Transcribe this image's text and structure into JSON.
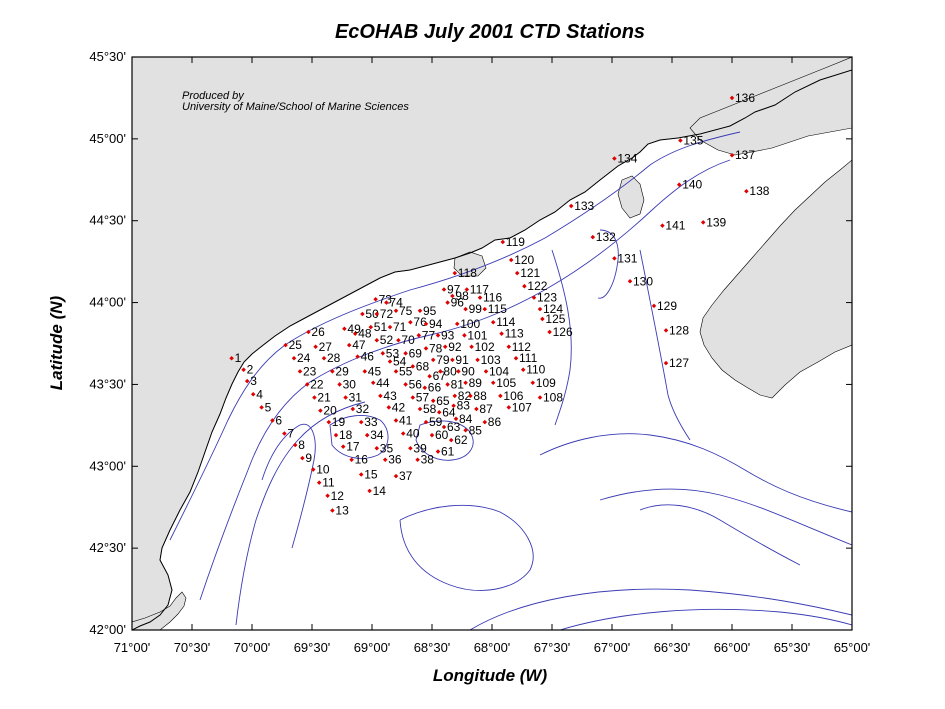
{
  "map": {
    "title": "EcOHAB   July 2001  CTD Stations",
    "xlabel": "Longitude (W)",
    "ylabel": "Latitude (N)",
    "credit": [
      "Produced by",
      "University of Maine/School of Marine Sciences"
    ],
    "lon_range": [
      -71.0,
      -65.0
    ],
    "lat_range": [
      42.0,
      45.5
    ],
    "lon_ticks": [
      {
        "value": -71.0,
        "label": "71°00'"
      },
      {
        "value": -70.5,
        "label": "70°30'"
      },
      {
        "value": -70.0,
        "label": "70°00'"
      },
      {
        "value": -69.5,
        "label": "69°30'"
      },
      {
        "value": -69.0,
        "label": "69°00'"
      },
      {
        "value": -68.5,
        "label": "68°30'"
      },
      {
        "value": -68.0,
        "label": "68°00'"
      },
      {
        "value": -67.5,
        "label": "67°30'"
      },
      {
        "value": -67.0,
        "label": "67°00'"
      },
      {
        "value": -66.5,
        "label": "66°30'"
      },
      {
        "value": -66.0,
        "label": "66°00'"
      },
      {
        "value": -65.5,
        "label": "65°30'"
      },
      {
        "value": -65.0,
        "label": "65°00'"
      }
    ],
    "lat_ticks": [
      {
        "value": 42.0,
        "label": "42°00'"
      },
      {
        "value": 42.5,
        "label": "42°30'"
      },
      {
        "value": 43.0,
        "label": "43°00'"
      },
      {
        "value": 43.5,
        "label": "43°30'"
      },
      {
        "value": 44.0,
        "label": "44°00'"
      },
      {
        "value": 44.5,
        "label": "44°30'"
      },
      {
        "value": 45.0,
        "label": "45°00'"
      },
      {
        "value": 45.5,
        "label": "45°30'"
      }
    ],
    "colors": {
      "land": "#e1e1e1",
      "water": "#ffffff",
      "coastline": "#000000",
      "bathymetry": "#3a3ab4",
      "station": "#e00000"
    }
  },
  "stations": [
    {
      "id": "1",
      "lon": -70.17,
      "lat": 43.66
    },
    {
      "id": "2",
      "lon": -70.07,
      "lat": 43.59
    },
    {
      "id": "3",
      "lon": -70.04,
      "lat": 43.52
    },
    {
      "id": "4",
      "lon": -69.99,
      "lat": 43.44
    },
    {
      "id": "5",
      "lon": -69.92,
      "lat": 43.36
    },
    {
      "id": "6",
      "lon": -69.83,
      "lat": 43.28
    },
    {
      "id": "7",
      "lon": -69.73,
      "lat": 43.2
    },
    {
      "id": "8",
      "lon": -69.64,
      "lat": 43.13
    },
    {
      "id": "9",
      "lon": -69.58,
      "lat": 43.05
    },
    {
      "id": "10",
      "lon": -69.49,
      "lat": 42.98
    },
    {
      "id": "11",
      "lon": -69.44,
      "lat": 42.9
    },
    {
      "id": "12",
      "lon": -69.37,
      "lat": 42.82
    },
    {
      "id": "13",
      "lon": -69.33,
      "lat": 42.73
    },
    {
      "id": "14",
      "lon": -69.02,
      "lat": 42.85
    },
    {
      "id": "15",
      "lon": -69.09,
      "lat": 42.95
    },
    {
      "id": "16",
      "lon": -69.17,
      "lat": 43.04
    },
    {
      "id": "17",
      "lon": -69.24,
      "lat": 43.12
    },
    {
      "id": "18",
      "lon": -69.3,
      "lat": 43.19
    },
    {
      "id": "19",
      "lon": -69.36,
      "lat": 43.27
    },
    {
      "id": "20",
      "lon": -69.43,
      "lat": 43.34
    },
    {
      "id": "21",
      "lon": -69.48,
      "lat": 43.42
    },
    {
      "id": "22",
      "lon": -69.54,
      "lat": 43.5
    },
    {
      "id": "23",
      "lon": -69.6,
      "lat": 43.58
    },
    {
      "id": "24",
      "lon": -69.65,
      "lat": 43.66
    },
    {
      "id": "25",
      "lon": -69.72,
      "lat": 43.74
    },
    {
      "id": "26",
      "lon": -69.53,
      "lat": 43.82
    },
    {
      "id": "27",
      "lon": -69.47,
      "lat": 43.73
    },
    {
      "id": "28",
      "lon": -69.4,
      "lat": 43.66
    },
    {
      "id": "29",
      "lon": -69.33,
      "lat": 43.58
    },
    {
      "id": "30",
      "lon": -69.27,
      "lat": 43.5
    },
    {
      "id": "31",
      "lon": -69.22,
      "lat": 43.42
    },
    {
      "id": "32",
      "lon": -69.16,
      "lat": 43.35
    },
    {
      "id": "33",
      "lon": -69.09,
      "lat": 43.27
    },
    {
      "id": "34",
      "lon": -69.04,
      "lat": 43.19
    },
    {
      "id": "35",
      "lon": -68.96,
      "lat": 43.11
    },
    {
      "id": "36",
      "lon": -68.89,
      "lat": 43.04
    },
    {
      "id": "37",
      "lon": -68.8,
      "lat": 42.94
    },
    {
      "id": "38",
      "lon": -68.62,
      "lat": 43.04
    },
    {
      "id": "39",
      "lon": -68.68,
      "lat": 43.11
    },
    {
      "id": "40",
      "lon": -68.74,
      "lat": 43.2
    },
    {
      "id": "41",
      "lon": -68.8,
      "lat": 43.28
    },
    {
      "id": "42",
      "lon": -68.86,
      "lat": 43.36
    },
    {
      "id": "43",
      "lon": -68.93,
      "lat": 43.43
    },
    {
      "id": "44",
      "lon": -68.99,
      "lat": 43.51
    },
    {
      "id": "45",
      "lon": -69.06,
      "lat": 43.58
    },
    {
      "id": "46",
      "lon": -69.12,
      "lat": 43.67
    },
    {
      "id": "47",
      "lon": -69.19,
      "lat": 43.74
    },
    {
      "id": "48",
      "lon": -69.14,
      "lat": 43.81
    },
    {
      "id": "49",
      "lon": -69.23,
      "lat": 43.84
    },
    {
      "id": "50",
      "lon": -69.08,
      "lat": 43.93
    },
    {
      "id": "51",
      "lon": -69.01,
      "lat": 43.85
    },
    {
      "id": "52",
      "lon": -68.96,
      "lat": 43.77
    },
    {
      "id": "53",
      "lon": -68.91,
      "lat": 43.69
    },
    {
      "id": "54",
      "lon": -68.85,
      "lat": 43.64
    },
    {
      "id": "55",
      "lon": -68.8,
      "lat": 43.58
    },
    {
      "id": "56",
      "lon": -68.72,
      "lat": 43.5
    },
    {
      "id": "57",
      "lon": -68.66,
      "lat": 43.42
    },
    {
      "id": "58",
      "lon": -68.6,
      "lat": 43.35
    },
    {
      "id": "59",
      "lon": -68.55,
      "lat": 43.27
    },
    {
      "id": "60",
      "lon": -68.5,
      "lat": 43.19
    },
    {
      "id": "61",
      "lon": -68.45,
      "lat": 43.09
    },
    {
      "id": "62",
      "lon": -68.34,
      "lat": 43.16
    },
    {
      "id": "63",
      "lon": -68.4,
      "lat": 43.24
    },
    {
      "id": "64",
      "lon": -68.44,
      "lat": 43.33
    },
    {
      "id": "65",
      "lon": -68.49,
      "lat": 43.4
    },
    {
      "id": "66",
      "lon": -68.56,
      "lat": 43.48
    },
    {
      "id": "67",
      "lon": -68.52,
      "lat": 43.55
    },
    {
      "id": "68",
      "lon": -68.66,
      "lat": 43.61
    },
    {
      "id": "69",
      "lon": -68.72,
      "lat": 43.69
    },
    {
      "id": "70",
      "lon": -68.78,
      "lat": 43.77
    },
    {
      "id": "71",
      "lon": -68.85,
      "lat": 43.85
    },
    {
      "id": "72",
      "lon": -68.96,
      "lat": 43.93
    },
    {
      "id": "73",
      "lon": -68.97,
      "lat": 44.02
    },
    {
      "id": "74",
      "lon": -68.88,
      "lat": 44.0
    },
    {
      "id": "75",
      "lon": -68.8,
      "lat": 43.95
    },
    {
      "id": "76",
      "lon": -68.68,
      "lat": 43.88
    },
    {
      "id": "77",
      "lon": -68.61,
      "lat": 43.8
    },
    {
      "id": "78",
      "lon": -68.55,
      "lat": 43.72
    },
    {
      "id": "79",
      "lon": -68.49,
      "lat": 43.65
    },
    {
      "id": "80",
      "lon": -68.43,
      "lat": 43.58
    },
    {
      "id": "81",
      "lon": -68.37,
      "lat": 43.5
    },
    {
      "id": "82",
      "lon": -68.31,
      "lat": 43.43
    },
    {
      "id": "83",
      "lon": -68.32,
      "lat": 43.37
    },
    {
      "id": "84",
      "lon": -68.3,
      "lat": 43.29
    },
    {
      "id": "85",
      "lon": -68.22,
      "lat": 43.22
    },
    {
      "id": "86",
      "lon": -68.06,
      "lat": 43.27
    },
    {
      "id": "87",
      "lon": -68.13,
      "lat": 43.35
    },
    {
      "id": "88",
      "lon": -68.18,
      "lat": 43.43
    },
    {
      "id": "89",
      "lon": -68.22,
      "lat": 43.51
    },
    {
      "id": "90",
      "lon": -68.28,
      "lat": 43.58
    },
    {
      "id": "91",
      "lon": -68.33,
      "lat": 43.65
    },
    {
      "id": "92",
      "lon": -68.39,
      "lat": 43.73
    },
    {
      "id": "93",
      "lon": -68.45,
      "lat": 43.8
    },
    {
      "id": "94",
      "lon": -68.55,
      "lat": 43.87
    },
    {
      "id": "95",
      "lon": -68.6,
      "lat": 43.95
    },
    {
      "id": "96",
      "lon": -68.37,
      "lat": 44.0
    },
    {
      "id": "97",
      "lon": -68.4,
      "lat": 44.08
    },
    {
      "id": "98",
      "lon": -68.33,
      "lat": 44.04
    },
    {
      "id": "99",
      "lon": -68.22,
      "lat": 43.96
    },
    {
      "id": "100",
      "lon": -68.29,
      "lat": 43.87
    },
    {
      "id": "101",
      "lon": -68.23,
      "lat": 43.8
    },
    {
      "id": "102",
      "lon": -68.17,
      "lat": 43.73
    },
    {
      "id": "103",
      "lon": -68.12,
      "lat": 43.65
    },
    {
      "id": "104",
      "lon": -68.05,
      "lat": 43.58
    },
    {
      "id": "105",
      "lon": -67.99,
      "lat": 43.51
    },
    {
      "id": "106",
      "lon": -67.93,
      "lat": 43.43
    },
    {
      "id": "107",
      "lon": -67.86,
      "lat": 43.36
    },
    {
      "id": "108",
      "lon": -67.6,
      "lat": 43.42
    },
    {
      "id": "109",
      "lon": -67.66,
      "lat": 43.51
    },
    {
      "id": "110",
      "lon": -67.74,
      "lat": 43.59
    },
    {
      "id": "111",
      "lon": -67.8,
      "lat": 43.66
    },
    {
      "id": "112",
      "lon": -67.86,
      "lat": 43.73
    },
    {
      "id": "113",
      "lon": -67.92,
      "lat": 43.81
    },
    {
      "id": "114",
      "lon": -67.99,
      "lat": 43.88
    },
    {
      "id": "115",
      "lon": -68.06,
      "lat": 43.96
    },
    {
      "id": "116",
      "lon": -68.1,
      "lat": 44.03
    },
    {
      "id": "117",
      "lon": -68.21,
      "lat": 44.08
    },
    {
      "id": "118",
      "lon": -68.31,
      "lat": 44.18
    },
    {
      "id": "119",
      "lon": -67.91,
      "lat": 44.37
    },
    {
      "id": "120",
      "lon": -67.84,
      "lat": 44.26
    },
    {
      "id": "121",
      "lon": -67.79,
      "lat": 44.18
    },
    {
      "id": "122",
      "lon": -67.73,
      "lat": 44.1
    },
    {
      "id": "123",
      "lon": -67.65,
      "lat": 44.03
    },
    {
      "id": "124",
      "lon": -67.6,
      "lat": 43.96
    },
    {
      "id": "125",
      "lon": -67.58,
      "lat": 43.9
    },
    {
      "id": "126",
      "lon": -67.52,
      "lat": 43.82
    },
    {
      "id": "127",
      "lon": -66.55,
      "lat": 43.63
    },
    {
      "id": "128",
      "lon": -66.55,
      "lat": 43.83
    },
    {
      "id": "129",
      "lon": -66.65,
      "lat": 43.98
    },
    {
      "id": "130",
      "lon": -66.85,
      "lat": 44.13
    },
    {
      "id": "131",
      "lon": -66.98,
      "lat": 44.27
    },
    {
      "id": "132",
      "lon": -67.16,
      "lat": 44.4
    },
    {
      "id": "133",
      "lon": -67.34,
      "lat": 44.59
    },
    {
      "id": "134",
      "lon": -66.98,
      "lat": 44.88
    },
    {
      "id": "135",
      "lon": -66.43,
      "lat": 44.99
    },
    {
      "id": "136",
      "lon": -66.0,
      "lat": 45.25
    },
    {
      "id": "137",
      "lon": -66.0,
      "lat": 44.9
    },
    {
      "id": "138",
      "lon": -65.88,
      "lat": 44.68
    },
    {
      "id": "139",
      "lon": -66.24,
      "lat": 44.49
    },
    {
      "id": "140",
      "lon": -66.44,
      "lat": 44.72
    },
    {
      "id": "141",
      "lon": -66.58,
      "lat": 44.47
    }
  ]
}
